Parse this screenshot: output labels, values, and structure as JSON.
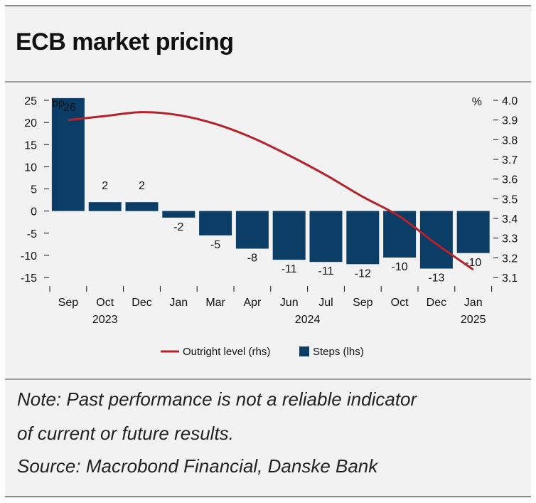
{
  "title": "ECB market pricing",
  "notes": {
    "line1": "Note: Past performance is not a reliable indicator",
    "line2": "of current or future results.",
    "source": "Source: Macrobond Financial, Danske Bank"
  },
  "colors": {
    "bars": "#0b3d66",
    "line": "#b5222b"
  },
  "chart_data": {
    "type": "bar",
    "categories": [
      "Sep",
      "Oct",
      "Dec",
      "Jan",
      "Mar",
      "Apr",
      "Jun",
      "Jul",
      "Sep",
      "Oct",
      "Dec",
      "Jan"
    ],
    "years": [
      {
        "label": "2023",
        "under": 1
      },
      {
        "label": "2024",
        "under": 6.5
      },
      {
        "label": "2025",
        "under": 11
      }
    ],
    "series": [
      {
        "name": "Steps (lhs)",
        "type": "bar",
        "axis": "left",
        "values": [
          26,
          2,
          2,
          -2,
          -5,
          -8,
          -11,
          -11,
          -12,
          -10,
          -13,
          -10
        ],
        "labels": [
          "26",
          "2",
          "2",
          "-2",
          "-5",
          "-8",
          "-11",
          "-11",
          "-12",
          "-10",
          "-13",
          "-10"
        ],
        "plotted": [
          25.5,
          2,
          2,
          -1.5,
          -5.5,
          -8.5,
          -11,
          -11.5,
          -12,
          -10.5,
          -13,
          -9.5
        ]
      },
      {
        "name": "Outright level (rhs)",
        "type": "line",
        "axis": "right",
        "values": [
          3.9,
          3.92,
          3.94,
          3.925,
          3.88,
          3.81,
          3.72,
          3.62,
          3.51,
          3.41,
          3.27,
          3.14
        ]
      }
    ],
    "left_axis": {
      "unit": "bp",
      "ylim": [
        -15,
        25
      ],
      "ticks": [
        25,
        20,
        15,
        10,
        5,
        0,
        -5,
        -10,
        -15
      ]
    },
    "right_axis": {
      "unit": "%",
      "ylim": [
        3.1,
        4.0
      ],
      "ticks": [
        "4.0",
        "3.9",
        "3.8",
        "3.7",
        "3.6",
        "3.5",
        "3.4",
        "3.3",
        "3.2",
        "3.1"
      ]
    },
    "legend": {
      "placement": "bottom-center",
      "entries": [
        {
          "label": "Outright level (rhs)",
          "kind": "line"
        },
        {
          "label": "Steps (lhs)",
          "kind": "box"
        }
      ]
    }
  }
}
